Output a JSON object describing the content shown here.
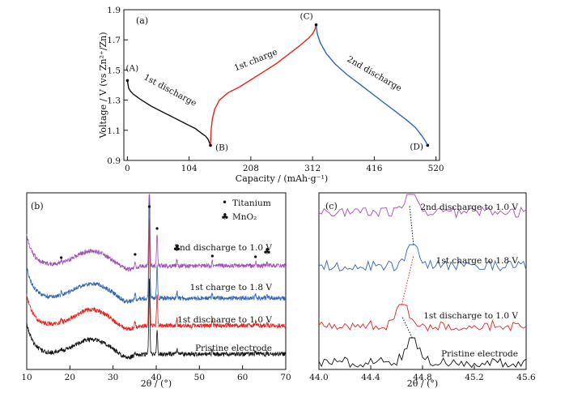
{
  "panels": {
    "a": {
      "label": "(a)"
    },
    "b": {
      "label": "(b)"
    },
    "c": {
      "label": "(c)"
    }
  },
  "chart_data": [
    {
      "type": "line",
      "panel": "(a)",
      "xlabel": "Capacity / (mAh·g⁻¹)",
      "ylabel": "Voltage / V (vs Zn²⁺/Zn)",
      "xlim": [
        -6,
        526
      ],
      "ylim": [
        0.9,
        1.9
      ],
      "xticks": [
        0,
        104,
        208,
        312,
        416,
        520
      ],
      "yticks": [
        0.9,
        1.1,
        1.3,
        1.5,
        1.7,
        1.9
      ],
      "points": [
        {
          "name": "(A)",
          "x": 0,
          "y": 1.43
        },
        {
          "name": "(B)",
          "x": 140,
          "y": 1.0
        },
        {
          "name": "(C)",
          "x": 318,
          "y": 1.8
        },
        {
          "name": "(D)",
          "x": 506,
          "y": 1.0
        }
      ],
      "series": [
        {
          "name": "1st discharge",
          "color": "#111111",
          "x": [
            0,
            2,
            5,
            10,
            20,
            40,
            60,
            80,
            100,
            115,
            125,
            132,
            136,
            138,
            140
          ],
          "y": [
            1.43,
            1.38,
            1.36,
            1.34,
            1.31,
            1.26,
            1.22,
            1.18,
            1.14,
            1.11,
            1.08,
            1.06,
            1.04,
            1.02,
            1.0
          ]
        },
        {
          "name": "1st charge",
          "color": "#e8231d",
          "x": [
            140,
            141,
            143,
            147,
            155,
            170,
            190,
            210,
            230,
            250,
            270,
            290,
            305,
            312,
            316,
            318
          ],
          "y": [
            1.0,
            1.1,
            1.17,
            1.24,
            1.3,
            1.35,
            1.39,
            1.44,
            1.49,
            1.54,
            1.6,
            1.66,
            1.71,
            1.74,
            1.77,
            1.8
          ]
        },
        {
          "name": "2nd discharge",
          "color": "#2f66b3",
          "x": [
            318,
            320,
            325,
            335,
            350,
            370,
            390,
            410,
            430,
            450,
            470,
            485,
            495,
            502,
            506
          ],
          "y": [
            1.8,
            1.74,
            1.68,
            1.61,
            1.54,
            1.47,
            1.41,
            1.35,
            1.29,
            1.23,
            1.17,
            1.12,
            1.07,
            1.03,
            1.0
          ]
        }
      ],
      "annotations": [
        {
          "text": "1st discharge",
          "x": 70,
          "y": 1.35
        },
        {
          "text": "1st charge",
          "x": 218,
          "y": 1.55
        },
        {
          "text": "2nd discharge",
          "x": 414,
          "y": 1.46
        }
      ]
    },
    {
      "type": "line",
      "panel": "(b)",
      "xlabel": "2θ / (°)",
      "xlim": [
        10,
        70
      ],
      "xticks": [
        10,
        20,
        30,
        40,
        50,
        60,
        70
      ],
      "legend": [
        {
          "symbol": "•",
          "text": "Titanium"
        },
        {
          "symbol": "♣",
          "text": "MnO₂"
        }
      ],
      "peaks_titanium": [
        18.0,
        35.1,
        38.4,
        40.2,
        53.0,
        63.0
      ],
      "peaks_mno2": [
        44.8,
        65.7
      ],
      "series": [
        {
          "name": "Pristine electrode",
          "color": "#111111",
          "offset": 0
        },
        {
          "name": "1st discharge to 1.0 V",
          "color": "#e8231d",
          "offset": 1
        },
        {
          "name": "1st charge to 1.8 V",
          "color": "#2f66b3",
          "offset": 2
        },
        {
          "name": "2nd discharge to 1.0 V",
          "color": "#a24fb8",
          "offset": 3
        }
      ]
    },
    {
      "type": "line",
      "panel": "(c)",
      "xlabel": "2θ / (°)",
      "xlim": [
        44.0,
        45.6
      ],
      "xticks": [
        44.0,
        44.4,
        44.8,
        45.2,
        45.6
      ],
      "xticklabels": [
        "44.0",
        "44.4",
        "44.8",
        "45.2",
        "45.6"
      ],
      "peak_positions": [
        44.72,
        44.64,
        44.73,
        44.7
      ],
      "series": [
        {
          "name": "Pristine electrode",
          "color": "#111111"
        },
        {
          "name": "1st discharge to 1.0 V",
          "color": "#e8231d"
        },
        {
          "name": "1st charge to 1.8 V",
          "color": "#2f66b3"
        },
        {
          "name": "2nd discharge to 1.0 V",
          "color": "#a24fb8"
        }
      ]
    }
  ]
}
